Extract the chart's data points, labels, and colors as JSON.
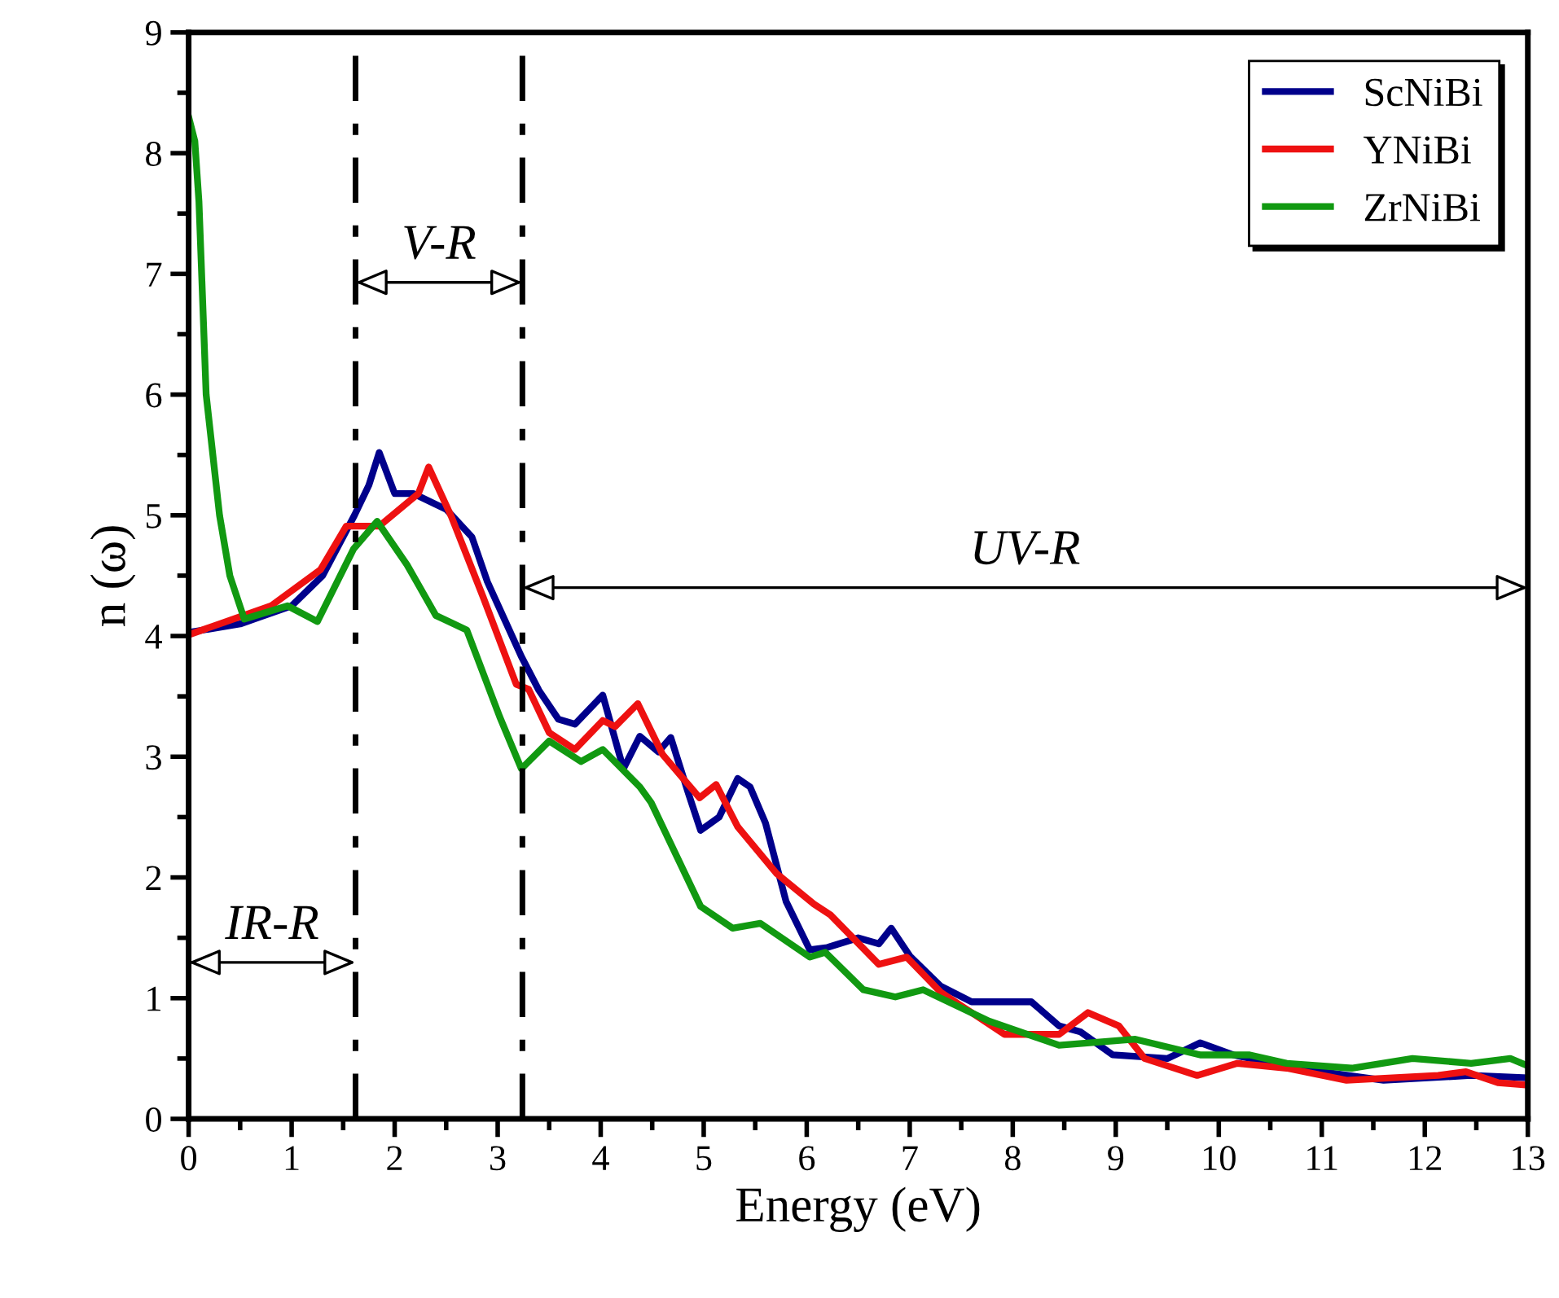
{
  "chart_data": {
    "type": "line",
    "xlabel": "Energy (eV)",
    "ylabel": "n (ω)",
    "xlim": [
      0,
      13
    ],
    "ylim": [
      0,
      9
    ],
    "xticks": [
      0,
      1,
      2,
      3,
      4,
      5,
      6,
      7,
      8,
      9,
      10,
      11,
      12,
      13
    ],
    "yticks": [
      0,
      1,
      2,
      3,
      4,
      5,
      6,
      7,
      8,
      9
    ],
    "grid": false,
    "legend": "top right",
    "line_style": "solid",
    "marker": "none",
    "series": [
      {
        "name": "ScNiBi",
        "color": "#00008b",
        "x": [
          0,
          0.5,
          1.0,
          1.3,
          1.61,
          1.75,
          1.85,
          2.0,
          2.18,
          2.5,
          2.75,
          2.9,
          3.23,
          3.4,
          3.59,
          3.75,
          4.02,
          4.22,
          4.38,
          4.56,
          4.68,
          4.85,
          4.97,
          5.15,
          5.33,
          5.45,
          5.6,
          5.8,
          6.03,
          6.2,
          6.5,
          6.7,
          6.82,
          7.0,
          7.3,
          7.6,
          7.8,
          8.18,
          8.45,
          8.66,
          8.97,
          9.5,
          9.82,
          10.14,
          10.82,
          11.6,
          12.45,
          13
        ],
        "values": [
          4.03,
          4.1,
          4.25,
          4.5,
          5.0,
          5.25,
          5.52,
          5.18,
          5.18,
          5.05,
          4.82,
          4.45,
          3.83,
          3.55,
          3.31,
          3.27,
          3.51,
          2.9,
          3.17,
          3.04,
          3.16,
          2.7,
          2.39,
          2.5,
          2.82,
          2.75,
          2.45,
          1.8,
          1.4,
          1.42,
          1.5,
          1.45,
          1.58,
          1.35,
          1.1,
          0.97,
          0.97,
          0.97,
          0.77,
          0.72,
          0.53,
          0.5,
          0.63,
          0.53,
          0.41,
          0.32,
          0.36,
          0.34
        ]
      },
      {
        "name": "YNiBi",
        "color": "#ee1111",
        "x": [
          0,
          0.8,
          1.28,
          1.53,
          1.85,
          2.23,
          2.33,
          2.55,
          2.86,
          3.18,
          3.3,
          3.5,
          3.75,
          4.02,
          4.14,
          4.36,
          4.6,
          4.96,
          5.12,
          5.33,
          5.71,
          6.07,
          6.23,
          6.7,
          6.97,
          7.3,
          7.92,
          8.45,
          8.73,
          9.03,
          9.28,
          9.79,
          10.18,
          10.66,
          11.24,
          12.13,
          12.4,
          12.71,
          13
        ],
        "values": [
          4.01,
          4.25,
          4.55,
          4.91,
          4.91,
          5.18,
          5.4,
          4.99,
          4.32,
          3.6,
          3.56,
          3.2,
          3.06,
          3.3,
          3.25,
          3.44,
          3.02,
          2.66,
          2.77,
          2.42,
          2.03,
          1.78,
          1.69,
          1.28,
          1.34,
          1.05,
          0.7,
          0.7,
          0.88,
          0.77,
          0.5,
          0.36,
          0.46,
          0.42,
          0.32,
          0.36,
          0.39,
          0.3,
          0.28
        ]
      },
      {
        "name": "ZrNiBi",
        "color": "#119911",
        "x": [
          0,
          0.06,
          0.1,
          0.17,
          0.3,
          0.4,
          0.54,
          0.96,
          1.25,
          1.6,
          1.83,
          2.12,
          2.4,
          2.7,
          3.02,
          3.23,
          3.5,
          3.81,
          4.02,
          4.38,
          4.49,
          4.97,
          5.28,
          5.55,
          6.03,
          6.18,
          6.55,
          6.86,
          7.13,
          7.77,
          8.45,
          9.19,
          9.82,
          10.3,
          10.66,
          11.29,
          11.88,
          12.45,
          12.83,
          13
        ],
        "values": [
          8.3,
          8.1,
          7.6,
          6.0,
          5.0,
          4.5,
          4.14,
          4.25,
          4.12,
          4.72,
          4.95,
          4.59,
          4.17,
          4.05,
          3.33,
          2.9,
          3.13,
          2.96,
          3.06,
          2.75,
          2.62,
          1.76,
          1.58,
          1.62,
          1.34,
          1.38,
          1.07,
          1.01,
          1.07,
          0.81,
          0.61,
          0.66,
          0.53,
          0.53,
          0.46,
          0.42,
          0.5,
          0.46,
          0.5,
          0.44
        ]
      }
    ],
    "ref_lines": [
      {
        "axis": "x",
        "value": 1.62,
        "color": "#000000",
        "line_style": "dashdot"
      },
      {
        "axis": "x",
        "value": 3.24,
        "color": "#000000",
        "line_style": "dashdot"
      }
    ],
    "annotations": [
      "IR-R",
      "V-R",
      "UV-R"
    ]
  }
}
